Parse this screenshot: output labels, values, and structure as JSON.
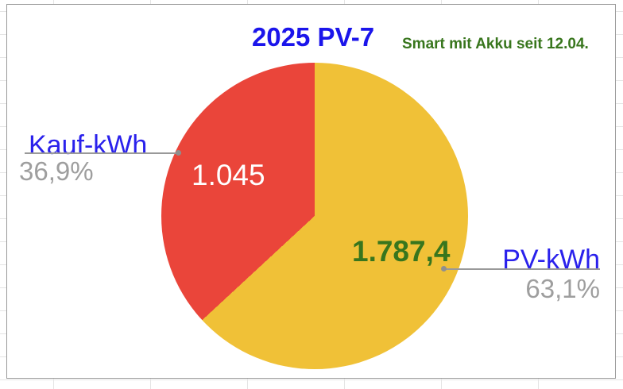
{
  "chart_data": {
    "type": "pie",
    "title": "2025 PV-7",
    "subtitle": "Smart mit Akku seit 12.04.",
    "legend_position": "none",
    "start_angle_deg": 0,
    "direction": "clockwise",
    "slices": [
      {
        "label": "PV-kWh",
        "value": 1787.4,
        "value_label": "1.787,4",
        "percent": 63.1,
        "percent_label": "63,1%",
        "color": "#F0C137"
      },
      {
        "label": "Kauf-kWh",
        "value": 1045,
        "value_label": "1.045",
        "percent": 36.9,
        "percent_label": "36,9%",
        "color": "#EA453A"
      }
    ]
  },
  "colors": {
    "title_blue": "#1B15EB",
    "label_blue": "#2A21EC",
    "subtitle_green": "#38761D",
    "value_green": "#38761D",
    "value_white": "#FFFFFF",
    "percent_gray": "#9E9E9E",
    "leader_gray": "#999999",
    "chart_border": "#9A9A9A",
    "sheet_grid_line": "#E4E4E4"
  }
}
